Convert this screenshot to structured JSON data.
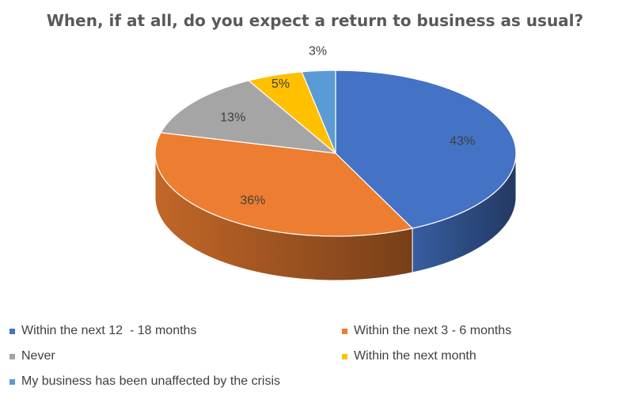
{
  "chart_data": {
    "type": "pie",
    "title": "When, if at all, do you expect a return to business as usual?",
    "three_d": true,
    "legend_position": "bottom",
    "series": [
      {
        "name": "Within the next 12  - 18 months",
        "value": 43,
        "label": "43%",
        "color": "#4472c4"
      },
      {
        "name": "Within the next 3 - 6 months",
        "value": 36,
        "label": "36%",
        "color": "#ed7d31"
      },
      {
        "name": "Never",
        "value": 13,
        "label": "13%",
        "color": "#a5a5a5"
      },
      {
        "name": "Within the next month",
        "value": 5,
        "label": "5%",
        "color": "#ffc000"
      },
      {
        "name": "My business has been unaffected by the crisis",
        "value": 3,
        "label": "3%",
        "color": "#5b9bd5"
      }
    ]
  }
}
